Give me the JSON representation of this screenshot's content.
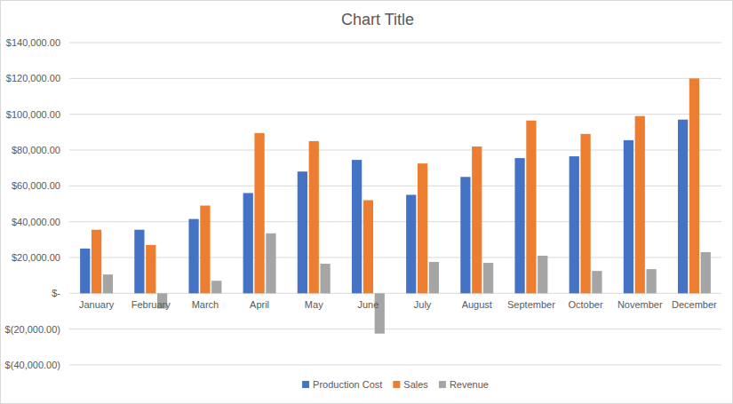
{
  "chart_data": {
    "type": "bar",
    "title": "Chart Title",
    "categories": [
      "January",
      "February",
      "March",
      "April",
      "May",
      "June",
      "July",
      "August",
      "September",
      "October",
      "November",
      "December"
    ],
    "series": [
      {
        "name": "Production Cost",
        "color": "#4472c4",
        "values": [
          25000,
          35500,
          41500,
          56000,
          68000,
          74500,
          55000,
          65000,
          75500,
          76500,
          85500,
          97000
        ]
      },
      {
        "name": "Sales",
        "color": "#ed7d31",
        "values": [
          35500,
          27000,
          49000,
          89500,
          85000,
          52000,
          72500,
          82000,
          96500,
          89000,
          99000,
          120000
        ]
      },
      {
        "name": "Revenue",
        "color": "#a5a5a5",
        "values": [
          10500,
          -8500,
          7000,
          33500,
          16500,
          -22500,
          17500,
          17000,
          21000,
          12500,
          13500,
          23000
        ]
      }
    ],
    "ylim": [
      -40000,
      140000
    ],
    "yticks": [
      {
        "value": -40000,
        "label": "$(40,000.00)"
      },
      {
        "value": -20000,
        "label": "$(20,000.00)"
      },
      {
        "value": 0,
        "label": "$-"
      },
      {
        "value": 20000,
        "label": "$20,000.00"
      },
      {
        "value": 40000,
        "label": "$40,000.00"
      },
      {
        "value": 60000,
        "label": "$60,000.00"
      },
      {
        "value": 80000,
        "label": "$80,000.00"
      },
      {
        "value": 100000,
        "label": "$100,000.00"
      },
      {
        "value": 120000,
        "label": "$120,000.00"
      },
      {
        "value": 140000,
        "label": "$140,000.00"
      }
    ],
    "grid": true,
    "legend": "bottom"
  }
}
